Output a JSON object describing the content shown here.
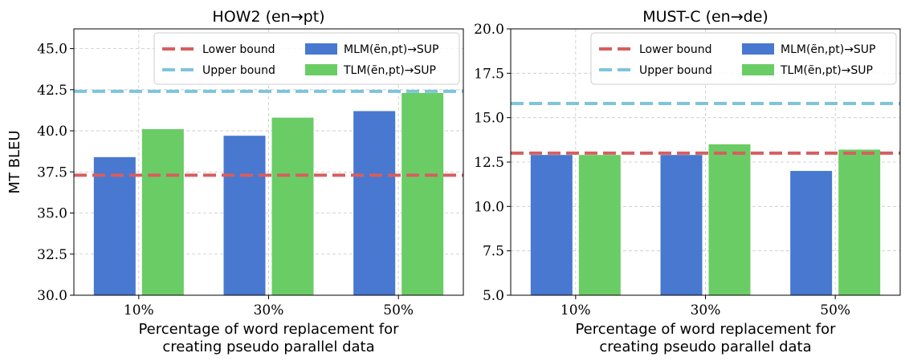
{
  "chart_data": [
    {
      "type": "bar",
      "title": "HOW2 (en→pt)",
      "xlabel": "Percentage of word replacement for\ncreating pseudo parallel data",
      "ylabel": "MT BLEU",
      "categories": [
        "10%",
        "30%",
        "50%"
      ],
      "series": [
        {
          "name": "MLM(ẽn,pt)→SUP",
          "values": [
            38.4,
            39.7,
            41.2
          ],
          "color": "#4878d0"
        },
        {
          "name": "TLM(ẽn,pt)→SUP",
          "values": [
            40.1,
            40.8,
            42.3
          ],
          "color": "#6acc64"
        }
      ],
      "hlines": [
        {
          "name": "Lower bound",
          "value": 37.3,
          "color": "#d65f5f"
        },
        {
          "name": "Upper bound",
          "value": 42.4,
          "color": "#7ec4db"
        }
      ],
      "ylim": [
        30,
        46.2
      ],
      "yticks": [
        "30.0",
        "32.5",
        "35.0",
        "37.5",
        "40.0",
        "42.5",
        "45.0"
      ],
      "grid": true,
      "legend_position": "top-right"
    },
    {
      "type": "bar",
      "title": "MUST-C (en→de)",
      "xlabel": "Percentage of word replacement for\ncreating pseudo parallel data",
      "ylabel": "",
      "categories": [
        "10%",
        "30%",
        "50%"
      ],
      "series": [
        {
          "name": "MLM(ẽn,pt)→SUP",
          "values": [
            12.9,
            12.9,
            12.0
          ],
          "color": "#4878d0"
        },
        {
          "name": "TLM(ẽn,pt)→SUP",
          "values": [
            12.9,
            13.5,
            13.2
          ],
          "color": "#6acc64"
        }
      ],
      "hlines": [
        {
          "name": "Lower bound",
          "value": 13.0,
          "color": "#d65f5f"
        },
        {
          "name": "Upper bound",
          "value": 15.8,
          "color": "#7ec4db"
        }
      ],
      "ylim": [
        5,
        20
      ],
      "yticks": [
        "5.0",
        "7.5",
        "10.0",
        "12.5",
        "15.0",
        "17.5",
        "20.0"
      ],
      "grid": true,
      "legend_position": "top-right"
    }
  ]
}
